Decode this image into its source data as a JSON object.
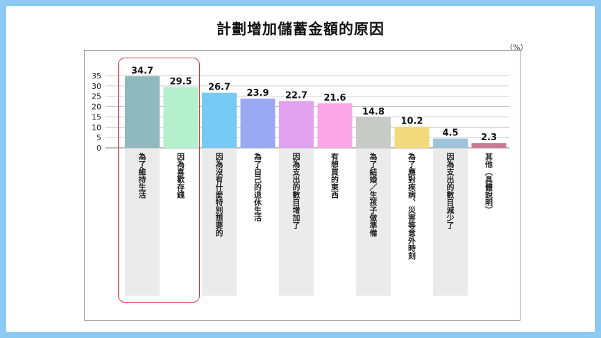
{
  "title": "計劃增加儲蓄金額的原因",
  "unit": "（%）",
  "chart_data": {
    "type": "bar",
    "title": "計劃增加儲蓄金額的原因",
    "ylim": [
      0,
      35
    ],
    "yticks": [
      0,
      5,
      10,
      15,
      20,
      25,
      30,
      35
    ],
    "grid": true,
    "categories": [
      "為了維持生活",
      "因為喜歡存錢",
      "因為沒有什麼特別想要的",
      "為了自己的退休生活",
      "因為支出的數目增加了",
      "有想買的東西",
      "為了結婚／生孩子做準備",
      "為了應對疾病、災害等意外時刻",
      "因為支出的數目減少了",
      "其他（具體說明）"
    ],
    "values": [
      34.7,
      29.5,
      26.7,
      23.9,
      22.7,
      21.6,
      14.8,
      10.2,
      4.5,
      2.3
    ],
    "value_labels": [
      "34.7",
      "29.5",
      "26.7",
      "23.9",
      "22.7",
      "21.6",
      "14.8",
      "10.2",
      "4.5",
      "2.3"
    ],
    "colors": [
      "#8fb8bf",
      "#b4f0cc",
      "#77c9f6",
      "#9aa9f2",
      "#e3a2f0",
      "#fba6e6",
      "#c6cbc5",
      "#f2d97c",
      "#9dc4d8",
      "#c97a92"
    ],
    "highlighted": [
      "為了維持生活",
      "因為喜歡存錢"
    ]
  }
}
